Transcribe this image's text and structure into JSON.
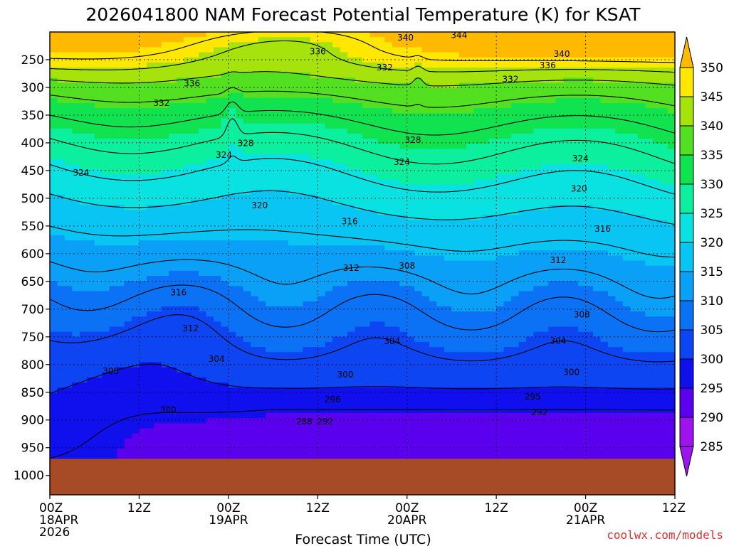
{
  "chart_data": {
    "type": "heatmap",
    "title": "2026041800 NAM Forecast Potential Temperature (K) for KSAT",
    "xlabel": "Forecast Time (UTC)",
    "ylabel": "",
    "credit": "coolwx.com/models",
    "x_ticks": [
      {
        "hours": 0,
        "line1": "00Z",
        "line2": "18APR",
        "line3": "2026"
      },
      {
        "hours": 12,
        "line1": "12Z",
        "line2": "",
        "line3": ""
      },
      {
        "hours": 24,
        "line1": "00Z",
        "line2": "19APR",
        "line3": ""
      },
      {
        "hours": 36,
        "line1": "12Z",
        "line2": "",
        "line3": ""
      },
      {
        "hours": 48,
        "line1": "00Z",
        "line2": "20APR",
        "line3": ""
      },
      {
        "hours": 60,
        "line1": "12Z",
        "line2": "",
        "line3": ""
      },
      {
        "hours": 72,
        "line1": "00Z",
        "line2": "21APR",
        "line3": ""
      },
      {
        "hours": 84,
        "line1": "12Z",
        "line2": "",
        "line3": ""
      }
    ],
    "xlim": [
      0,
      84
    ],
    "ylim": [
      200,
      1035
    ],
    "y_ticks": [
      250,
      300,
      350,
      400,
      450,
      500,
      550,
      600,
      650,
      700,
      750,
      800,
      850,
      900,
      950,
      1000
    ],
    "surface_pressure": 970,
    "colorbar": {
      "levels": [
        285,
        290,
        295,
        300,
        305,
        310,
        315,
        320,
        325,
        330,
        335,
        340,
        345,
        350
      ],
      "colors": [
        "#9d14ef",
        "#5a00ee",
        "#1010ee",
        "#0e45f2",
        "#0c72f5",
        "#0aa0f7",
        "#08c5f3",
        "#0ae2e2",
        "#0cef9f",
        "#10e250",
        "#52e020",
        "#a6e20c",
        "#ffe700"
      ],
      "above_color": "#ffba00",
      "below_color": "#9d14ef"
    },
    "contour_labels": [
      {
        "text": "340",
        "hours": 47.8,
        "p": 210
      },
      {
        "text": "344",
        "hours": 55.0,
        "p": 206
      },
      {
        "text": "336",
        "hours": 36.0,
        "p": 235
      },
      {
        "text": "340",
        "hours": 68.8,
        "p": 240
      },
      {
        "text": "336",
        "hours": 66.9,
        "p": 260
      },
      {
        "text": "332",
        "hours": 45.0,
        "p": 264
      },
      {
        "text": "332",
        "hours": 61.9,
        "p": 285
      },
      {
        "text": "336",
        "hours": 19.1,
        "p": 293
      },
      {
        "text": "332",
        "hours": 15.0,
        "p": 328
      },
      {
        "text": "328",
        "hours": 26.3,
        "p": 401
      },
      {
        "text": "328",
        "hours": 48.8,
        "p": 395
      },
      {
        "text": "324",
        "hours": 23.4,
        "p": 422
      },
      {
        "text": "324",
        "hours": 47.3,
        "p": 435
      },
      {
        "text": "324",
        "hours": 71.3,
        "p": 428
      },
      {
        "text": "324",
        "hours": 4.2,
        "p": 454
      },
      {
        "text": "320",
        "hours": 71.1,
        "p": 483
      },
      {
        "text": "320",
        "hours": 28.2,
        "p": 513
      },
      {
        "text": "316",
        "hours": 40.3,
        "p": 542
      },
      {
        "text": "316",
        "hours": 74.3,
        "p": 555
      },
      {
        "text": "312",
        "hours": 68.3,
        "p": 612
      },
      {
        "text": "312",
        "hours": 40.5,
        "p": 626
      },
      {
        "text": "308",
        "hours": 48.0,
        "p": 622
      },
      {
        "text": "316",
        "hours": 17.3,
        "p": 670
      },
      {
        "text": "308",
        "hours": 71.5,
        "p": 710
      },
      {
        "text": "312",
        "hours": 18.9,
        "p": 735
      },
      {
        "text": "304",
        "hours": 46.0,
        "p": 758
      },
      {
        "text": "304",
        "hours": 68.3,
        "p": 757
      },
      {
        "text": "304",
        "hours": 22.4,
        "p": 790
      },
      {
        "text": "308",
        "hours": 8.2,
        "p": 812
      },
      {
        "text": "300",
        "hours": 39.7,
        "p": 818
      },
      {
        "text": "300",
        "hours": 70.1,
        "p": 814
      },
      {
        "text": "296",
        "hours": 38.0,
        "p": 863
      },
      {
        "text": "295",
        "hours": 64.9,
        "p": 858
      },
      {
        "text": "292",
        "hours": 65.8,
        "p": 886
      },
      {
        "text": "300",
        "hours": 15.9,
        "p": 882
      },
      {
        "text": "288",
        "hours": 34.2,
        "p": 903
      },
      {
        "text": "292",
        "hours": 37.0,
        "p": 903
      }
    ]
  }
}
